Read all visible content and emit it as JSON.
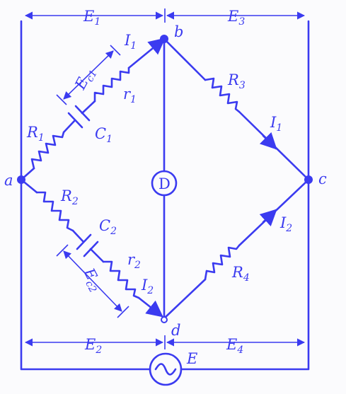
{
  "nodes": {
    "a": "a",
    "b": "b",
    "c": "c",
    "d": "d"
  },
  "voltages": {
    "e1": "E",
    "e1_sub": "1",
    "e2": "E",
    "e2_sub": "2",
    "e3": "E",
    "e3_sub": "3",
    "e4": "E",
    "e4_sub": "4",
    "ec1": "E",
    "ec1_sub": "c1",
    "ec2": "E",
    "ec2_sub": "c2",
    "source": "E"
  },
  "components": {
    "r1": "R",
    "r1_sub": "1",
    "r2": "R",
    "r2_sub": "2",
    "r3": "R",
    "r3_sub": "3",
    "r4": "R",
    "r4_sub": "4",
    "small_r1": "r",
    "small_r1_sub": "1",
    "small_r2": "r",
    "small_r2_sub": "2",
    "c1": "C",
    "c1_sub": "1",
    "c2": "C",
    "c2_sub": "2",
    "detector": "D"
  },
  "currents": {
    "i1": "I",
    "i1_sub": "1",
    "i2": "I",
    "i2_sub": "2"
  },
  "colors": {
    "ink": "#3b3bf0",
    "background": "#fbfbfd"
  }
}
